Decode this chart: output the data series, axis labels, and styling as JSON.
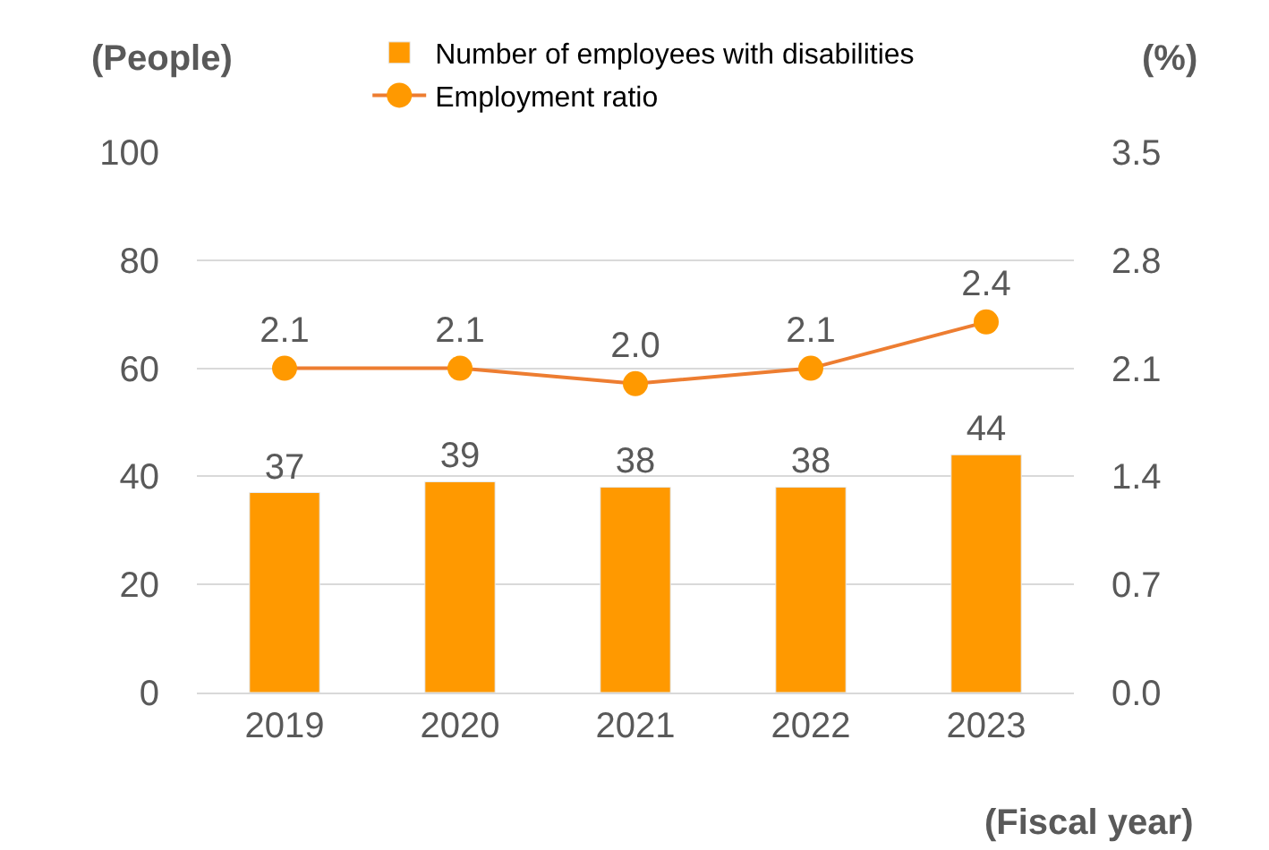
{
  "chart_data": {
    "type": "bar",
    "categories": [
      "2019",
      "2020",
      "2021",
      "2022",
      "2023"
    ],
    "series": [
      {
        "name": "Number of employees with disabilities",
        "color": "#ff9900",
        "values": [
          37,
          39,
          38,
          38,
          44
        ]
      },
      {
        "name": "Employment ratio",
        "type": "line",
        "axis": "y2",
        "color": "#ed7d31",
        "marker": "circle",
        "values": [
          2.1,
          2.1,
          2.0,
          2.1,
          2.4
        ],
        "value_labels": [
          "2.1",
          "2.1",
          "2.0",
          "2.1",
          "2.4"
        ]
      }
    ],
    "ylabel": "(People)",
    "y2label": "(%)",
    "xlabel": "(Fiscal year)",
    "ylim": [
      0,
      100
    ],
    "yticks": [
      0,
      20,
      40,
      60,
      80,
      100
    ],
    "y2lim": [
      0.0,
      3.5
    ],
    "y2ticks": [
      {
        "value": 0,
        "label": "0.0"
      },
      {
        "value": 0.7,
        "label": "0.7"
      },
      {
        "value": 1.4,
        "label": "1.4"
      },
      {
        "value": 2.1,
        "label": "2.1"
      },
      {
        "value": 2.8,
        "label": "2.8"
      },
      {
        "value": 3.5,
        "label": "3.5"
      }
    ],
    "grid": "y",
    "legend": "top",
    "data_labels": true
  }
}
